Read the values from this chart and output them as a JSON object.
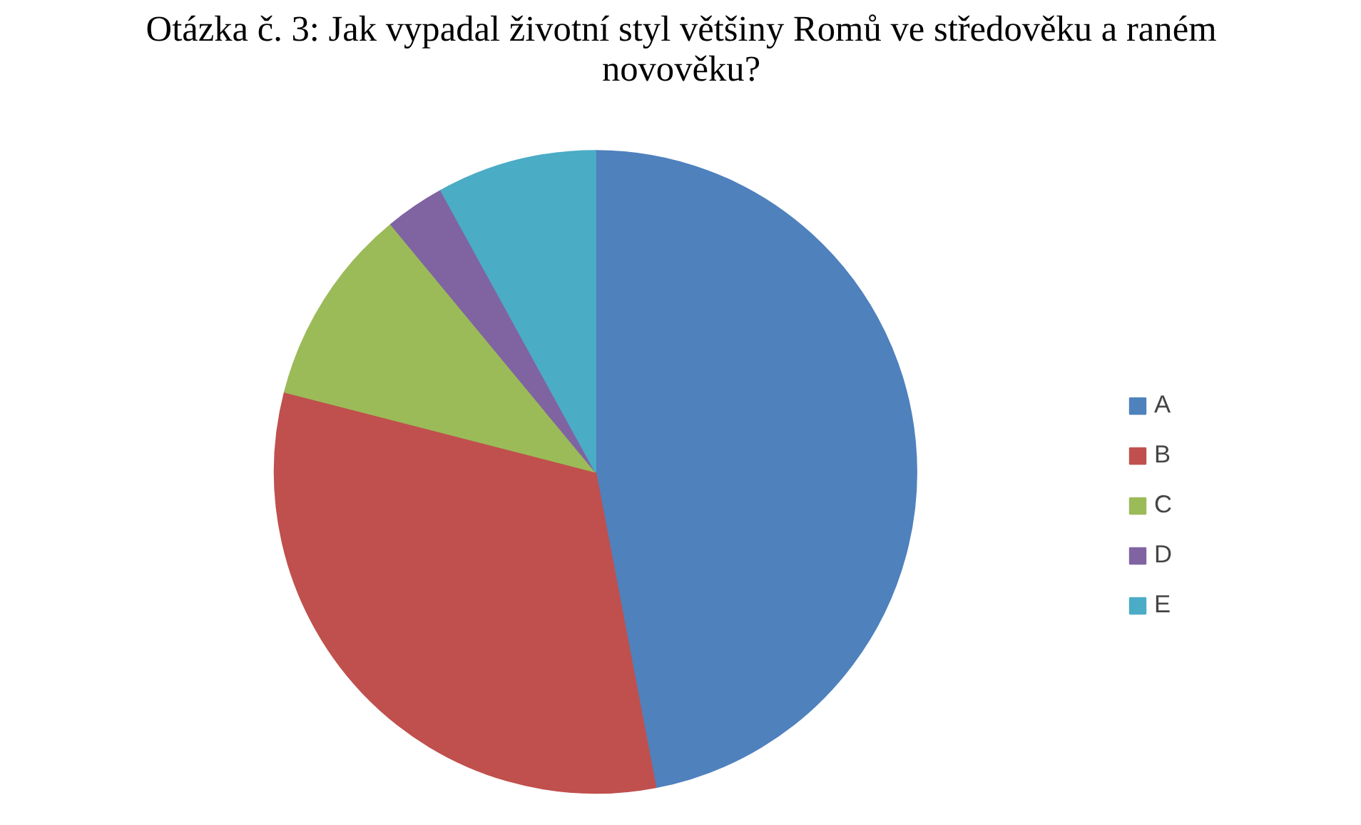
{
  "chart_data": {
    "type": "pie",
    "title": "Otázka č. 3: Jak vypadal životní styl většiny Romů ve středověku a raném novověku?",
    "categories": [
      "A",
      "B",
      "C",
      "D",
      "E"
    ],
    "values": [
      47,
      32,
      10,
      3,
      8
    ],
    "colors": [
      "#4f81bd",
      "#c0504d",
      "#9bbb59",
      "#8064a2",
      "#4bacc6"
    ],
    "legend": "right"
  }
}
